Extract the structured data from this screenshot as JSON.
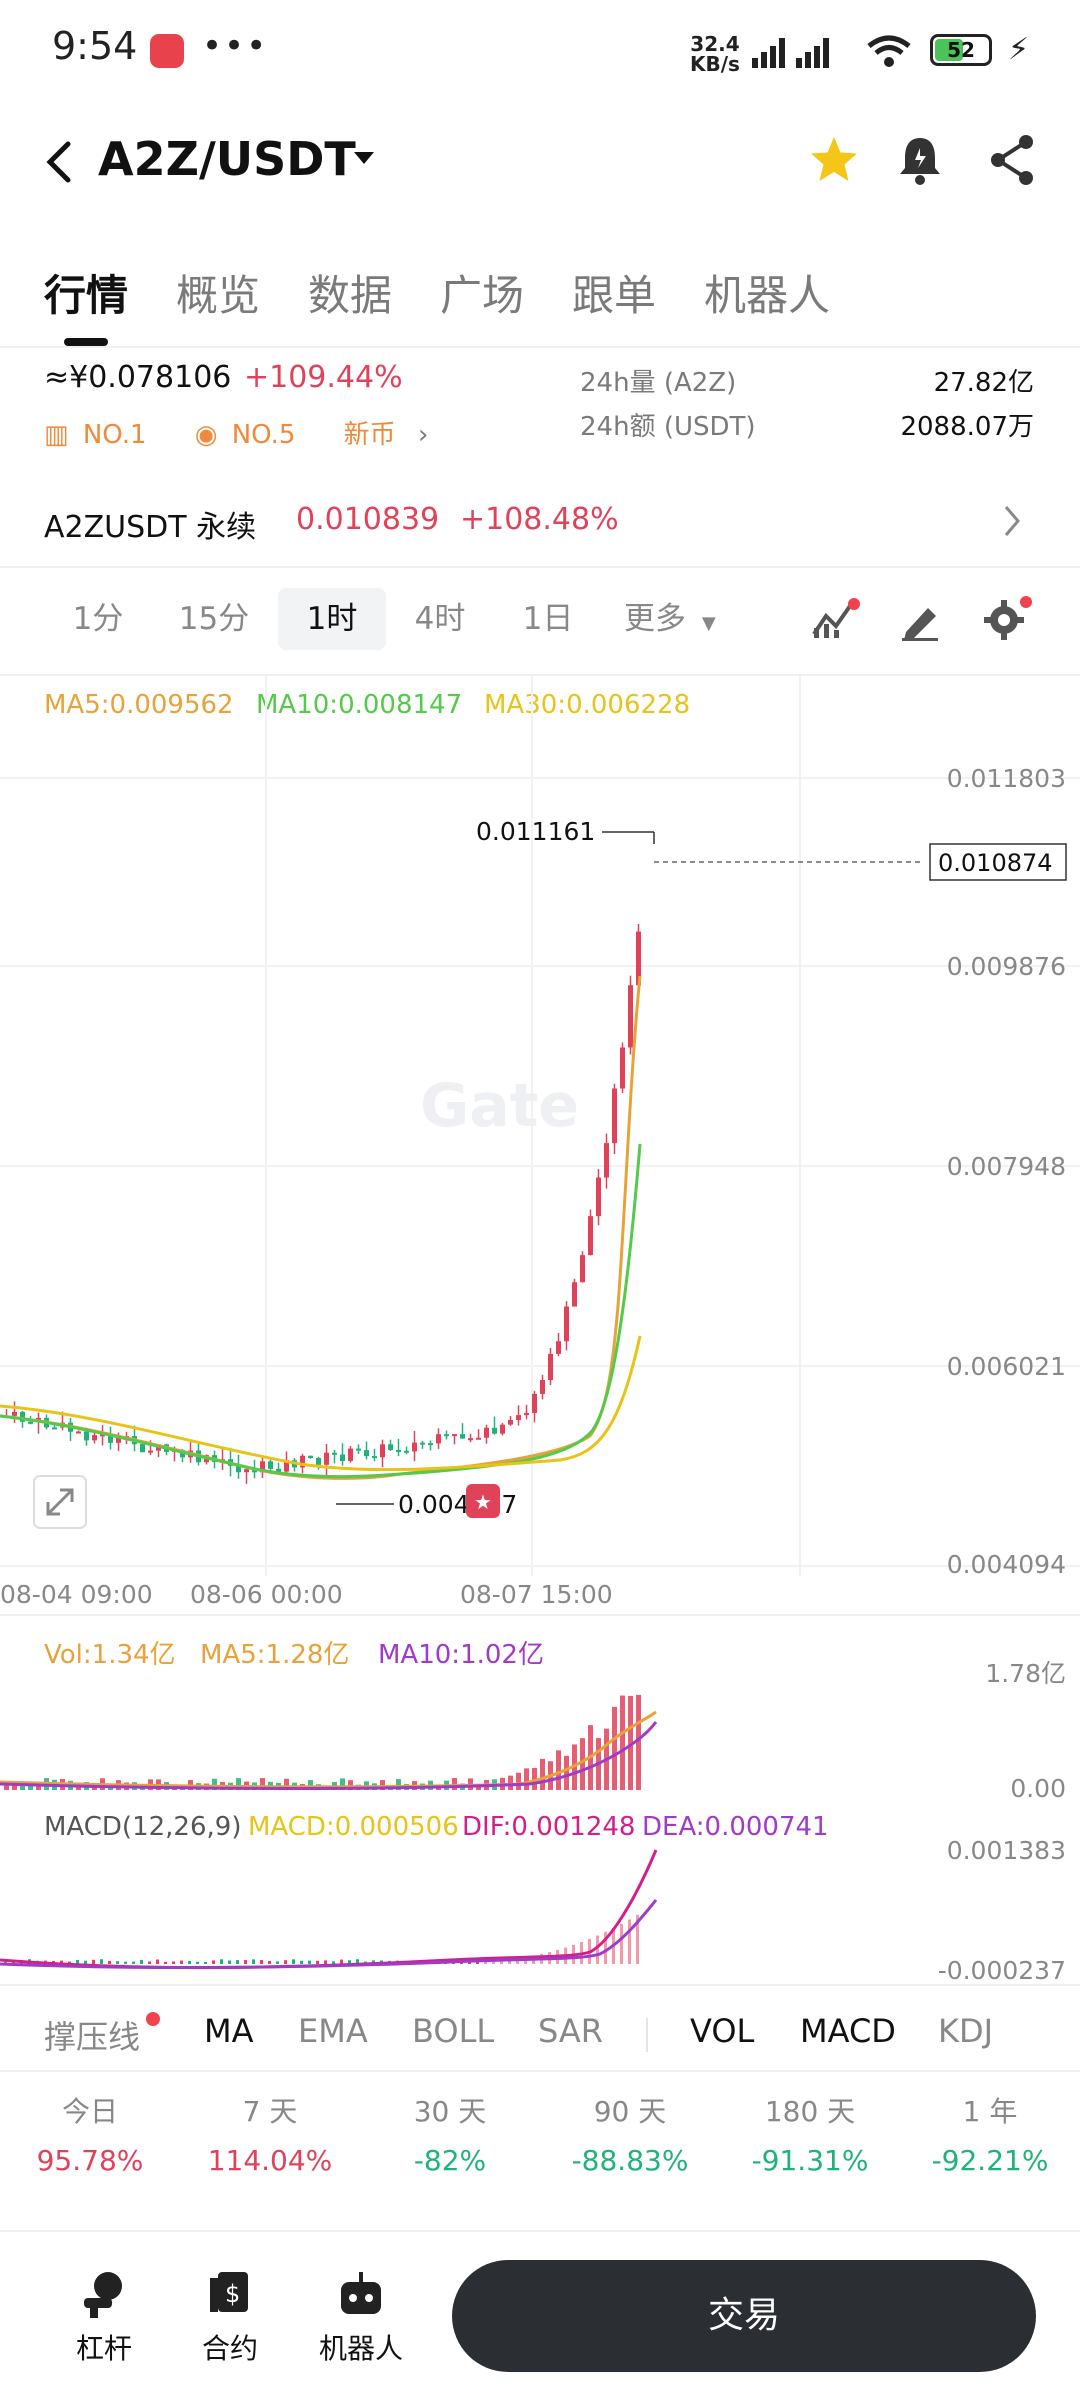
{
  "status_bar": {
    "time": "9:54",
    "net_speed_value": "32.4",
    "net_speed_unit": "KB/s",
    "battery": "52"
  },
  "header": {
    "pair": "A2Z/USDT"
  },
  "tabs": [
    "行情",
    "概览",
    "数据",
    "广场",
    "跟单",
    "机器人"
  ],
  "ticker": {
    "price_cny": "≈¥0.078106",
    "change": "+109.44%",
    "rank1": "NO.1",
    "rank2": "NO.5",
    "new_coin": "新币",
    "vol_label": "24h量 (A2Z)",
    "vol_value": "27.82亿",
    "amt_label": "24h额 (USDT)",
    "amt_value": "2088.07万"
  },
  "perp": {
    "name": "A2ZUSDT 永续",
    "price": "0.010839",
    "change": "+108.48%"
  },
  "timeframes": [
    "1分",
    "15分",
    "1时",
    "4时",
    "1日",
    "更多"
  ],
  "active_timeframe": "1时",
  "ma": {
    "ma5": "MA5:0.009562",
    "ma10": "MA10:0.008147",
    "ma30": "MA30:0.006228"
  },
  "price_axis": [
    "0.011803",
    "0.009876",
    "0.007948",
    "0.006021",
    "0.004094"
  ],
  "current_price_tag": "0.010874",
  "high_label": "0.011161",
  "low_label": "0.004737",
  "dates": [
    "08-04 09:00",
    "08-06 00:00",
    "08-07 15:00"
  ],
  "volume": {
    "vol": "Vol:1.34亿",
    "ma5": "MA5:1.28亿",
    "ma10": "MA10:1.02亿",
    "axis_top": "1.78亿",
    "axis_bottom": "0.00"
  },
  "macd": {
    "title": "MACD(12,26,9)",
    "macd": "MACD:0.000506",
    "dif": "DIF:0.001248",
    "dea": "DEA:0.000741",
    "axis_top": "0.001383",
    "axis_bottom": "-0.000237"
  },
  "indicator_tabs": [
    "撑压线",
    "MA",
    "EMA",
    "BOLL",
    "SAR",
    "VOL",
    "MACD",
    "KDJ"
  ],
  "performance": [
    {
      "label": "今日",
      "value": "95.78%",
      "dir": "up"
    },
    {
      "label": "7 天",
      "value": "114.04%",
      "dir": "up"
    },
    {
      "label": "30 天",
      "value": "-82%",
      "dir": "down"
    },
    {
      "label": "90 天",
      "value": "-88.83%",
      "dir": "down"
    },
    {
      "label": "180 天",
      "value": "-91.31%",
      "dir": "down"
    },
    {
      "label": "1 年",
      "value": "-92.21%",
      "dir": "down"
    }
  ],
  "bottom_nav": {
    "leverage": "杠杆",
    "contract": "合约",
    "robot": "机器人",
    "trade": "交易"
  },
  "watermark": "Gate",
  "colors": {
    "up": "#e0425a",
    "down": "#20b27a",
    "ma5": "#e8a23a",
    "ma10": "#55c94a",
    "ma30": "#e8c31a",
    "macd_dif": "#d2208a",
    "macd_dea": "#a03ac8"
  },
  "chart_data": {
    "type": "candlestick",
    "ylim": [
      0.004094,
      0.011803
    ],
    "current_price": 0.010874,
    "high": 0.011161,
    "low": 0.004737
  }
}
